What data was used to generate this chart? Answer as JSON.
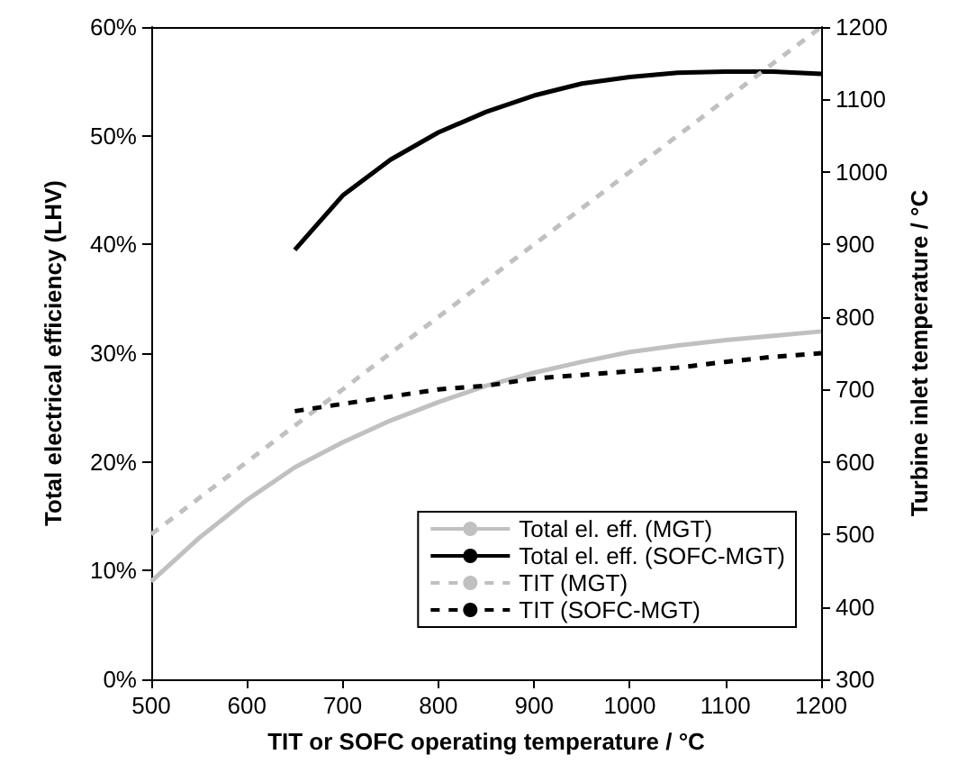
{
  "chart_data": {
    "type": "line",
    "xlabel": "TIT or SOFC operating temperature / °C",
    "ylabel": "Total electrical efficiency (LHV)",
    "y2label": "Turbine inlet temperature / °C",
    "xlim": [
      500,
      1200
    ],
    "xticks": [
      500,
      600,
      700,
      800,
      900,
      1000,
      1100,
      1200
    ],
    "ylim": [
      0,
      60
    ],
    "yticks": [
      {
        "value": 0,
        "label": "0%"
      },
      {
        "value": 10,
        "label": "10%"
      },
      {
        "value": 20,
        "label": "20%"
      },
      {
        "value": 30,
        "label": "30%"
      },
      {
        "value": 40,
        "label": "40%"
      },
      {
        "value": 50,
        "label": "50%"
      },
      {
        "value": 60,
        "label": "60%"
      }
    ],
    "y2lim": [
      300,
      1200
    ],
    "y2ticks": [
      300,
      400,
      500,
      600,
      700,
      800,
      900,
      1000,
      1100,
      1200
    ],
    "grid": false,
    "legend": "bottom right",
    "marker": "none",
    "series": [
      {
        "name": "Total el. eff. (MGT)",
        "color": "#c0c0c0",
        "line_style": "solid",
        "x": [
          500,
          550,
          600,
          650,
          700,
          750,
          800,
          850,
          900,
          950,
          1000,
          1050,
          1100,
          1150,
          1200
        ],
        "values": [
          9,
          13,
          16.5,
          19.5,
          21.8,
          23.8,
          25.5,
          27,
          28.2,
          29.2,
          30.1,
          30.7,
          31.2,
          31.6,
          32
        ]
      },
      {
        "name": "Total el. eff. (SOFC-MGT)",
        "color": "#000000",
        "line_style": "solid",
        "x": [
          650,
          700,
          750,
          800,
          850,
          900,
          950,
          1000,
          1050,
          1100,
          1150,
          1200
        ],
        "values": [
          39.5,
          44.5,
          47.8,
          50.3,
          52.2,
          53.7,
          54.8,
          55.4,
          55.8,
          55.9,
          55.9,
          55.7
        ]
      },
      {
        "name": "TIT (MGT)",
        "color": "#c0c0c0",
        "line_style": "dashed",
        "axis": "y2",
        "x": [
          500,
          1200
        ],
        "values": [
          500,
          1200
        ]
      },
      {
        "name": "TIT (SOFC-MGT)",
        "color": "#000000",
        "line_style": "dashed",
        "axis": "y2",
        "x": [
          650,
          700,
          750,
          800,
          850,
          900,
          950,
          1000,
          1050,
          1100,
          1150,
          1200
        ],
        "values": [
          670,
          680,
          690,
          700,
          705,
          715,
          720,
          725,
          730,
          738,
          745,
          750
        ]
      }
    ]
  }
}
